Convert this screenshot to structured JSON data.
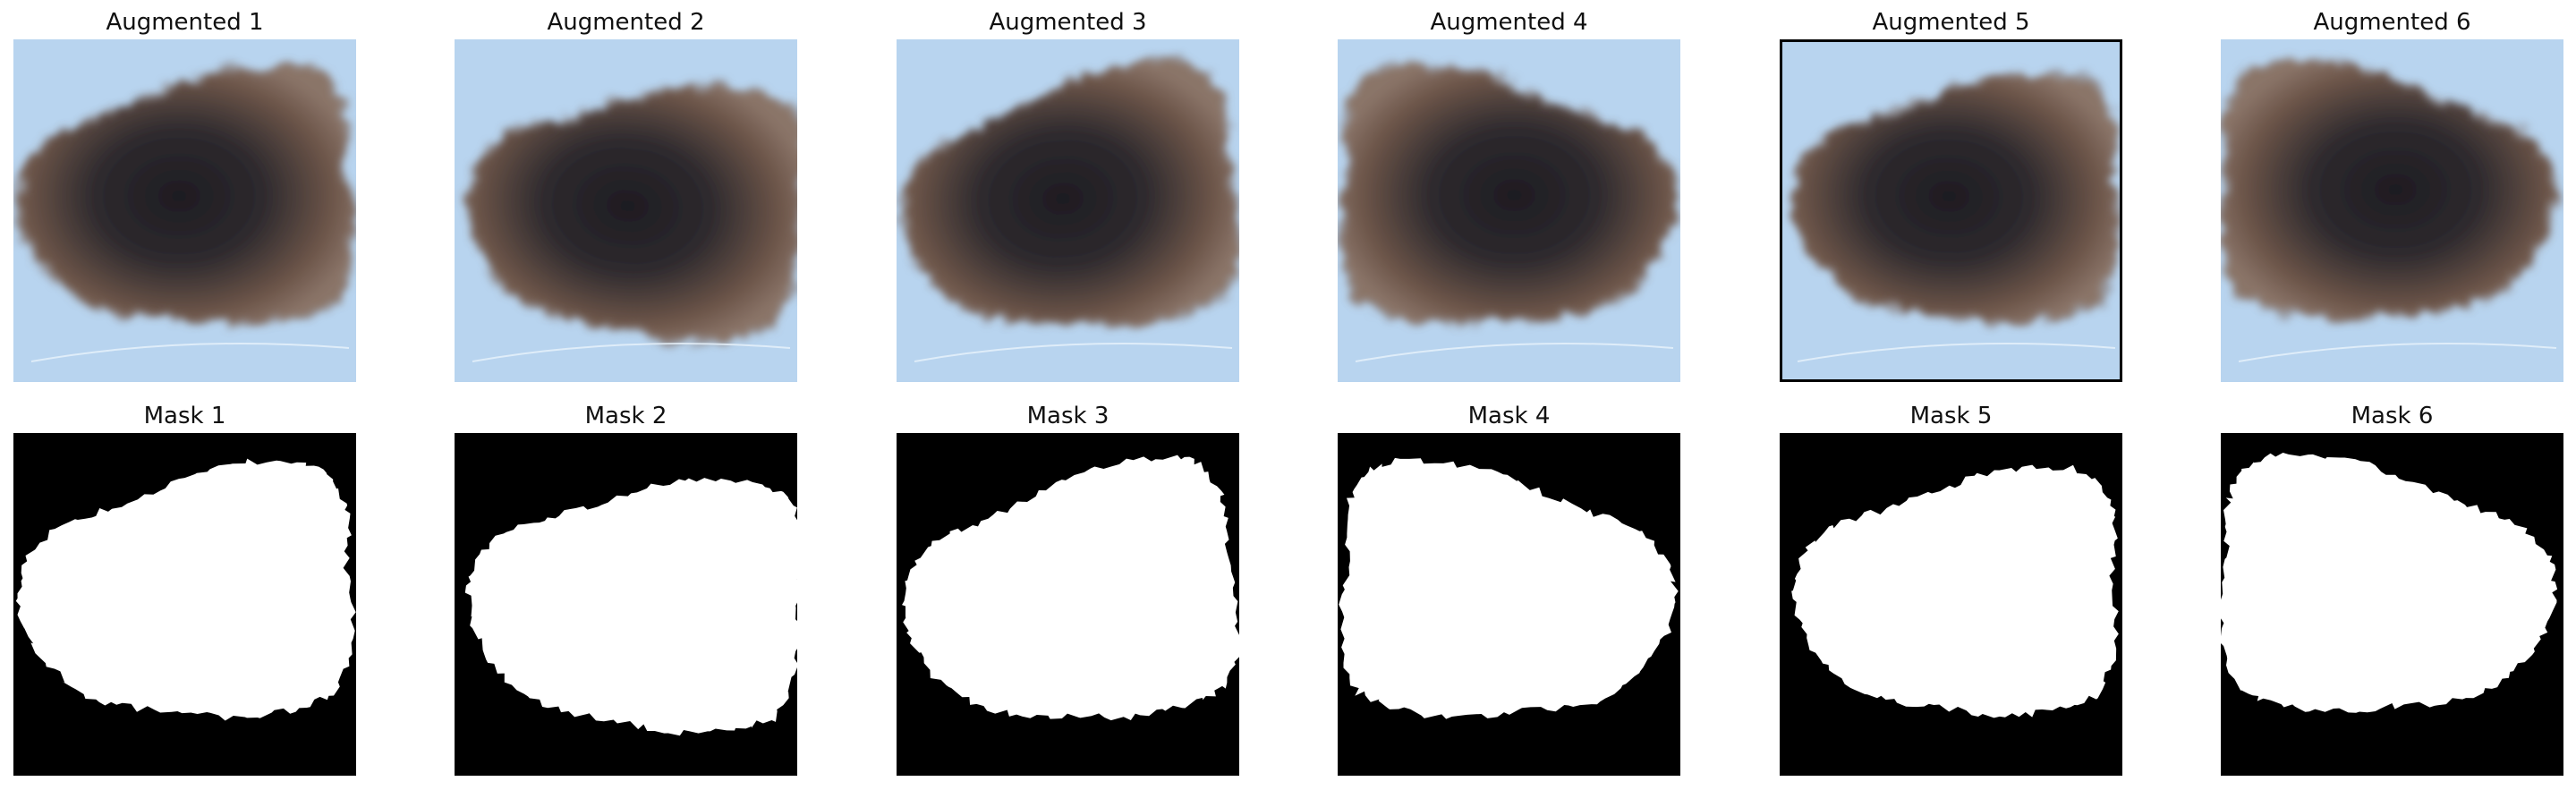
{
  "figure": {
    "rows": [
      {
        "kind": "augmented",
        "panels": [
          {
            "title": "Augmented 1"
          },
          {
            "title": "Augmented 2"
          },
          {
            "title": "Augmented 3"
          },
          {
            "title": "Augmented 4"
          },
          {
            "title": "Augmented 5"
          },
          {
            "title": "Augmented 6"
          }
        ]
      },
      {
        "kind": "mask",
        "panels": [
          {
            "title": "Mask 1"
          },
          {
            "title": "Mask 2"
          },
          {
            "title": "Mask 3"
          },
          {
            "title": "Mask 4"
          },
          {
            "title": "Mask 5"
          },
          {
            "title": "Mask 6"
          }
        ]
      }
    ]
  },
  "colors": {
    "skin_background": "#b8d4ef",
    "lesion_outer": "#6b5448",
    "lesion_inner": "#2e2a2e",
    "lesion_core": "#1e1c22",
    "mask_background": "#000000",
    "mask_foreground": "#ffffff"
  },
  "icons": {
    "augmented_image": "dermoscopy-lesion-image",
    "mask_image": "binary-segmentation-mask"
  }
}
